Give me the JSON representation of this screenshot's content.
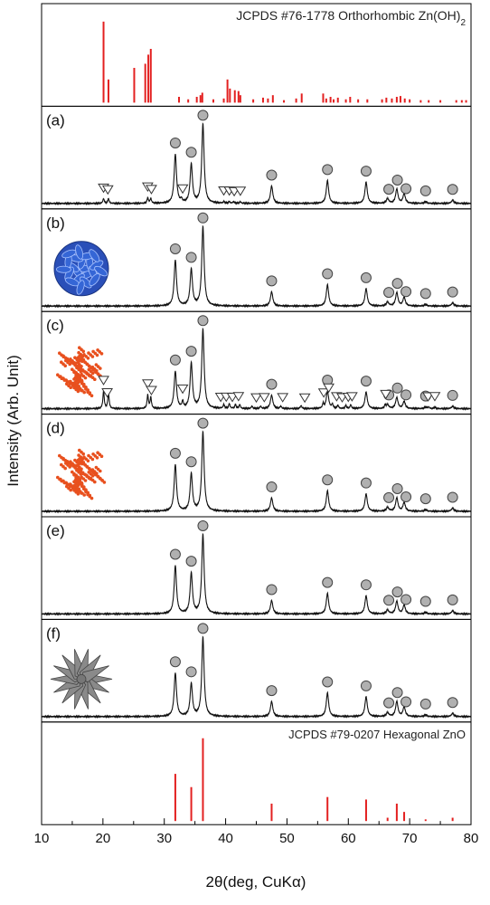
{
  "chart_data": {
    "type": "line",
    "title": "",
    "xlabel": "2θ(deg, CuKα)",
    "ylabel": "Intensity (Arb. Unit)",
    "xlim": [
      10,
      80
    ],
    "xticks": [
      10,
      20,
      30,
      40,
      50,
      60,
      70,
      80
    ],
    "grid": false,
    "legend": "none",
    "colors": {
      "reference": "#e32020",
      "trace": "#111111",
      "circle_fill": "#b0b0b0",
      "flake": "#3566d6",
      "dots": "#e8501e",
      "flower": "#8a8a8a"
    },
    "references": {
      "top": {
        "label": "JCPDS #76-1778 Orthorhombic Zn(OH)",
        "label_sub": "2",
        "peaks": [
          {
            "x": 20.1,
            "h": 0.98
          },
          {
            "x": 20.9,
            "h": 0.28
          },
          {
            "x": 25.1,
            "h": 0.42
          },
          {
            "x": 26.9,
            "h": 0.47
          },
          {
            "x": 27.4,
            "h": 0.58
          },
          {
            "x": 27.8,
            "h": 0.65
          },
          {
            "x": 32.4,
            "h": 0.07
          },
          {
            "x": 33.9,
            "h": 0.04
          },
          {
            "x": 35.3,
            "h": 0.07
          },
          {
            "x": 35.9,
            "h": 0.09
          },
          {
            "x": 36.2,
            "h": 0.12
          },
          {
            "x": 38.0,
            "h": 0.04
          },
          {
            "x": 39.7,
            "h": 0.05
          },
          {
            "x": 40.3,
            "h": 0.28
          },
          {
            "x": 40.7,
            "h": 0.17
          },
          {
            "x": 41.5,
            "h": 0.15
          },
          {
            "x": 42.1,
            "h": 0.14
          },
          {
            "x": 42.4,
            "h": 0.09
          },
          {
            "x": 44.5,
            "h": 0.04
          },
          {
            "x": 46.1,
            "h": 0.06
          },
          {
            "x": 46.9,
            "h": 0.05
          },
          {
            "x": 47.7,
            "h": 0.09
          },
          {
            "x": 49.5,
            "h": 0.03
          },
          {
            "x": 51.5,
            "h": 0.05
          },
          {
            "x": 52.4,
            "h": 0.11
          },
          {
            "x": 55.9,
            "h": 0.11
          },
          {
            "x": 56.4,
            "h": 0.05
          },
          {
            "x": 57.1,
            "h": 0.07
          },
          {
            "x": 57.6,
            "h": 0.04
          },
          {
            "x": 58.3,
            "h": 0.06
          },
          {
            "x": 59.6,
            "h": 0.04
          },
          {
            "x": 60.3,
            "h": 0.07
          },
          {
            "x": 61.6,
            "h": 0.04
          },
          {
            "x": 63.1,
            "h": 0.04
          },
          {
            "x": 65.5,
            "h": 0.04
          },
          {
            "x": 66.2,
            "h": 0.06
          },
          {
            "x": 67.1,
            "h": 0.05
          },
          {
            "x": 67.9,
            "h": 0.07
          },
          {
            "x": 68.5,
            "h": 0.08
          },
          {
            "x": 69.2,
            "h": 0.05
          },
          {
            "x": 70.0,
            "h": 0.04
          },
          {
            "x": 71.8,
            "h": 0.03
          },
          {
            "x": 73.1,
            "h": 0.03
          },
          {
            "x": 75.0,
            "h": 0.03
          },
          {
            "x": 77.6,
            "h": 0.03
          },
          {
            "x": 78.5,
            "h": 0.03
          },
          {
            "x": 79.2,
            "h": 0.03
          }
        ]
      },
      "bottom": {
        "label": "JCPDS #79-0207 Hexagonal ZnO",
        "peaks": [
          {
            "x": 31.8,
            "h": 0.57
          },
          {
            "x": 34.4,
            "h": 0.41
          },
          {
            "x": 36.3,
            "h": 1.0
          },
          {
            "x": 47.5,
            "h": 0.21
          },
          {
            "x": 56.6,
            "h": 0.29
          },
          {
            "x": 62.9,
            "h": 0.26
          },
          {
            "x": 66.4,
            "h": 0.04
          },
          {
            "x": 67.9,
            "h": 0.21
          },
          {
            "x": 69.1,
            "h": 0.11
          },
          {
            "x": 72.6,
            "h": 0.02
          },
          {
            "x": 77.0,
            "h": 0.04
          }
        ]
      }
    },
    "series": [
      {
        "label": "(a)",
        "zno": [
          [
            31.8,
            0.62
          ],
          [
            34.4,
            0.49
          ],
          [
            36.3,
            1.0
          ],
          [
            47.5,
            0.22
          ],
          [
            56.6,
            0.29
          ],
          [
            62.9,
            0.27
          ],
          [
            66.4,
            0.06
          ],
          [
            67.9,
            0.18
          ],
          [
            69.1,
            0.12
          ],
          [
            72.6,
            0.02
          ],
          [
            77.0,
            0.04
          ]
        ],
        "znoh": [
          [
            20.1,
            0.06
          ],
          [
            20.9,
            0.06
          ],
          [
            27.3,
            0.07
          ],
          [
            27.8,
            0.06
          ],
          [
            32.8,
            0.04
          ],
          [
            39.7,
            0.02
          ],
          [
            40.6,
            0.02
          ],
          [
            41.3,
            0.02
          ],
          [
            42.4,
            0.02
          ]
        ],
        "circles": [
          31.8,
          34.4,
          36.3,
          47.5,
          56.6,
          62.9,
          66.6,
          68.0,
          69.4,
          72.6,
          77.0
        ],
        "triangles": [
          20.1,
          20.8,
          27.3,
          27.9,
          33.0,
          39.7,
          40.6,
          41.4,
          42.4
        ],
        "inset": "none"
      },
      {
        "label": "(b)",
        "zno": [
          [
            31.8,
            0.58
          ],
          [
            34.4,
            0.46
          ],
          [
            36.3,
            1.0
          ],
          [
            47.5,
            0.18
          ],
          [
            56.6,
            0.27
          ],
          [
            62.9,
            0.22
          ],
          [
            66.4,
            0.05
          ],
          [
            67.9,
            0.17
          ],
          [
            69.1,
            0.11
          ],
          [
            72.6,
            0.02
          ],
          [
            77.0,
            0.04
          ]
        ],
        "znoh": [],
        "circles": [
          31.8,
          34.4,
          36.3,
          47.5,
          56.6,
          62.9,
          66.6,
          68.0,
          69.4,
          72.6,
          77.0
        ],
        "triangles": [],
        "inset": "flake"
      },
      {
        "label": "(c)",
        "zno": [
          [
            31.8,
            0.47
          ],
          [
            34.4,
            0.57
          ],
          [
            36.3,
            1.0
          ],
          [
            47.5,
            0.17
          ],
          [
            56.6,
            0.22
          ],
          [
            62.9,
            0.21
          ],
          [
            66.4,
            0.05
          ],
          [
            67.9,
            0.14
          ],
          [
            69.1,
            0.09
          ],
          [
            72.6,
            0.02
          ],
          [
            77.0,
            0.03
          ]
        ],
        "znoh": [
          [
            20.1,
            0.22
          ],
          [
            20.9,
            0.2
          ],
          [
            27.3,
            0.17
          ],
          [
            27.8,
            0.14
          ],
          [
            33.0,
            0.08
          ],
          [
            39.7,
            0.05
          ],
          [
            40.6,
            0.06
          ],
          [
            41.6,
            0.05
          ],
          [
            42.3,
            0.05
          ],
          [
            44.3,
            0.03
          ],
          [
            45.7,
            0.03
          ],
          [
            49.0,
            0.03
          ],
          [
            52.3,
            0.04
          ],
          [
            55.9,
            0.06
          ],
          [
            57.4,
            0.05
          ],
          [
            58.3,
            0.04
          ],
          [
            59.6,
            0.04
          ],
          [
            60.4,
            0.05
          ],
          [
            66.0,
            0.04
          ],
          [
            73.1,
            0.02
          ],
          [
            74.1,
            0.02
          ]
        ],
        "circles": [
          31.8,
          34.4,
          36.3,
          47.5,
          56.6,
          62.9,
          66.6,
          68.0,
          69.4,
          72.6,
          77.0
        ],
        "triangles": [
          20.1,
          20.7,
          27.3,
          27.9,
          33.0,
          39.2,
          40.1,
          41.1,
          42.1,
          45.0,
          46.3,
          49.3,
          52.9,
          56.0,
          56.8,
          58.1,
          59.0,
          60.0,
          60.6,
          66.1,
          73.0,
          74.1
        ],
        "inset": "dots"
      },
      {
        "label": "(d)",
        "zno": [
          [
            31.8,
            0.59
          ],
          [
            34.4,
            0.47
          ],
          [
            36.3,
            1.0
          ],
          [
            47.5,
            0.17
          ],
          [
            56.6,
            0.26
          ],
          [
            62.9,
            0.22
          ],
          [
            66.4,
            0.05
          ],
          [
            67.9,
            0.17
          ],
          [
            69.1,
            0.11
          ],
          [
            72.6,
            0.02
          ],
          [
            77.0,
            0.04
          ]
        ],
        "znoh": [],
        "circles": [
          31.8,
          34.4,
          36.3,
          47.5,
          56.6,
          62.9,
          66.6,
          68.0,
          69.4,
          72.6,
          77.0
        ],
        "triangles": [],
        "inset": "dots"
      },
      {
        "label": "(e)",
        "zno": [
          [
            31.8,
            0.61
          ],
          [
            34.4,
            0.51
          ],
          [
            36.3,
            1.0
          ],
          [
            47.5,
            0.17
          ],
          [
            56.6,
            0.26
          ],
          [
            62.9,
            0.23
          ],
          [
            66.4,
            0.05
          ],
          [
            67.9,
            0.16
          ],
          [
            69.1,
            0.11
          ],
          [
            72.6,
            0.02
          ],
          [
            77.0,
            0.04
          ]
        ],
        "znoh": [],
        "circles": [
          31.8,
          34.4,
          36.3,
          47.5,
          56.6,
          62.9,
          66.6,
          68.0,
          69.4,
          72.6,
          77.0
        ],
        "triangles": [],
        "inset": "none"
      },
      {
        "label": "(f)",
        "zno": [
          [
            31.8,
            0.55
          ],
          [
            34.4,
            0.41
          ],
          [
            36.3,
            1.0
          ],
          [
            47.5,
            0.19
          ],
          [
            56.6,
            0.3
          ],
          [
            62.9,
            0.25
          ],
          [
            66.4,
            0.05
          ],
          [
            67.9,
            0.19
          ],
          [
            69.1,
            0.12
          ],
          [
            72.6,
            0.02
          ],
          [
            77.0,
            0.04
          ]
        ],
        "znoh": [],
        "circles": [
          31.8,
          34.4,
          36.3,
          47.5,
          56.6,
          62.9,
          66.6,
          68.0,
          69.4,
          72.6,
          77.0
        ],
        "triangles": [],
        "inset": "flower"
      }
    ]
  }
}
